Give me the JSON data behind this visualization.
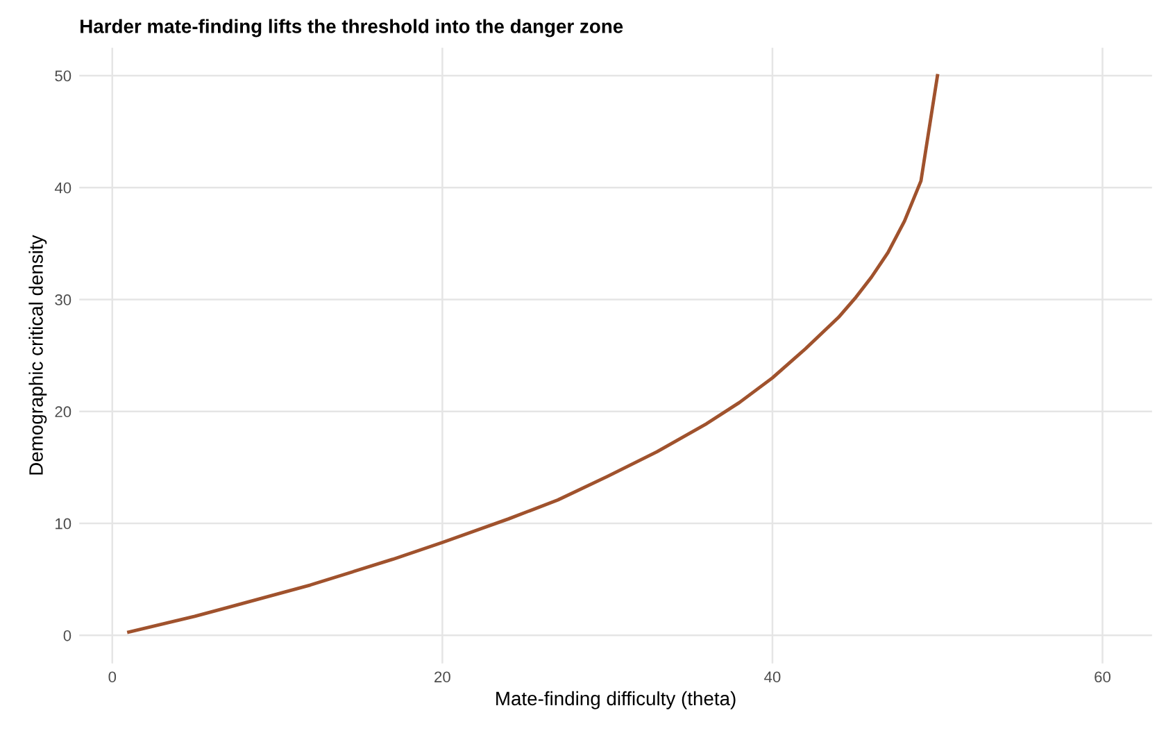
{
  "chart_data": {
    "type": "line",
    "title": "Harder mate-finding lifts the threshold into the danger zone",
    "xlabel": "Mate-finding difficulty (theta)",
    "ylabel": "Demographic critical density",
    "series": [
      {
        "color": "#a0522d",
        "x": [
          1,
          5,
          7,
          12,
          17,
          20,
          24,
          27,
          30,
          33,
          36,
          38,
          40,
          42,
          44,
          45,
          46,
          47,
          48,
          49,
          50
        ],
        "values": [
          0.3,
          1.7,
          2.5,
          4.5,
          6.8,
          8.3,
          10.4,
          12.1,
          14.2,
          16.4,
          18.9,
          20.8,
          23.0,
          25.6,
          28.4,
          30.1,
          32.0,
          34.2,
          37.0,
          40.6,
          50.0
        ]
      }
    ],
    "xlim": [
      -2,
      63
    ],
    "ylim": [
      -2.5,
      52.5
    ],
    "xticks": [
      0,
      20,
      40,
      60
    ],
    "yticks": [
      0,
      10,
      20,
      30,
      40,
      50
    ],
    "grid": true,
    "legend": false,
    "marker": "none",
    "line_style": "solid"
  }
}
